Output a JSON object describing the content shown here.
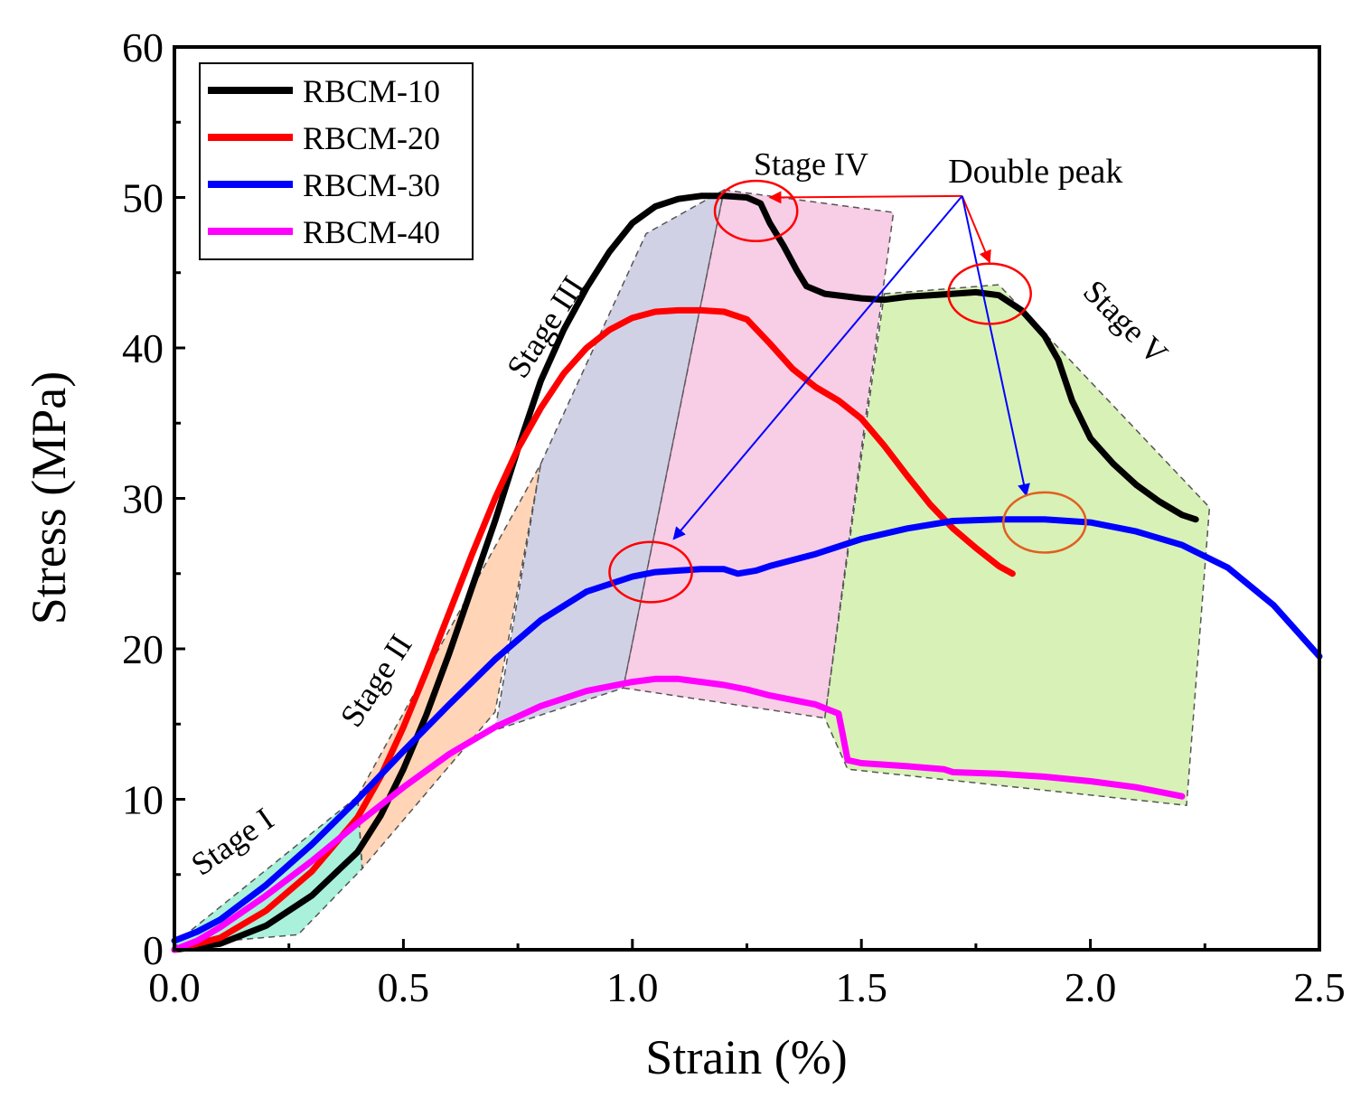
{
  "chart_data": {
    "type": "line",
    "xlabel": "Strain (%)",
    "ylabel": "Stress (MPa)",
    "xlim": [
      0,
      2.5
    ],
    "ylim": [
      0,
      60
    ],
    "x_ticks": [
      "0.0",
      "0.5",
      "1.0",
      "1.5",
      "2.0",
      "2.5"
    ],
    "y_ticks": [
      "0",
      "10",
      "20",
      "30",
      "40",
      "50",
      "60"
    ],
    "legend_position": "top-left",
    "series": [
      {
        "name": "RBCM-10",
        "color": "#000000",
        "points": [
          [
            0,
            0
          ],
          [
            0.1,
            0.4
          ],
          [
            0.2,
            1.6
          ],
          [
            0.3,
            3.6
          ],
          [
            0.4,
            6.5
          ],
          [
            0.45,
            8.9
          ],
          [
            0.5,
            12
          ],
          [
            0.55,
            15.6
          ],
          [
            0.6,
            19.7
          ],
          [
            0.65,
            24.1
          ],
          [
            0.7,
            28.5
          ],
          [
            0.75,
            33.3
          ],
          [
            0.8,
            37.8
          ],
          [
            0.85,
            41.2
          ],
          [
            0.9,
            44.0
          ],
          [
            0.95,
            46.4
          ],
          [
            1.0,
            48.3
          ],
          [
            1.05,
            49.4
          ],
          [
            1.1,
            49.9
          ],
          [
            1.15,
            50.1
          ],
          [
            1.2,
            50.1
          ],
          [
            1.25,
            50.0
          ],
          [
            1.28,
            49.6
          ],
          [
            1.3,
            48.3
          ],
          [
            1.33,
            46.8
          ],
          [
            1.36,
            45.1
          ],
          [
            1.38,
            44.1
          ],
          [
            1.42,
            43.6
          ],
          [
            1.5,
            43.3
          ],
          [
            1.55,
            43.2
          ],
          [
            1.6,
            43.4
          ],
          [
            1.7,
            43.6
          ],
          [
            1.75,
            43.7
          ],
          [
            1.8,
            43.5
          ],
          [
            1.85,
            42.5
          ],
          [
            1.9,
            40.8
          ],
          [
            1.93,
            39.2
          ],
          [
            1.96,
            36.5
          ],
          [
            2.0,
            34.0
          ],
          [
            2.05,
            32.3
          ],
          [
            2.1,
            30.9
          ],
          [
            2.15,
            29.8
          ],
          [
            2.2,
            28.9
          ],
          [
            2.23,
            28.6
          ]
        ]
      },
      {
        "name": "RBCM-20",
        "color": "#ff0000",
        "points": [
          [
            0,
            0
          ],
          [
            0.1,
            0.8
          ],
          [
            0.2,
            2.6
          ],
          [
            0.3,
            5.2
          ],
          [
            0.4,
            8.8
          ],
          [
            0.45,
            11.5
          ],
          [
            0.5,
            14.8
          ],
          [
            0.55,
            18.5
          ],
          [
            0.6,
            22.4
          ],
          [
            0.65,
            26.3
          ],
          [
            0.7,
            30.0
          ],
          [
            0.75,
            33.3
          ],
          [
            0.8,
            36.0
          ],
          [
            0.85,
            38.3
          ],
          [
            0.9,
            40.0
          ],
          [
            0.95,
            41.2
          ],
          [
            1.0,
            42.0
          ],
          [
            1.05,
            42.4
          ],
          [
            1.1,
            42.5
          ],
          [
            1.15,
            42.5
          ],
          [
            1.2,
            42.4
          ],
          [
            1.25,
            41.9
          ],
          [
            1.3,
            40.3
          ],
          [
            1.35,
            38.6
          ],
          [
            1.4,
            37.4
          ],
          [
            1.45,
            36.5
          ],
          [
            1.5,
            35.3
          ],
          [
            1.55,
            33.5
          ],
          [
            1.6,
            31.5
          ],
          [
            1.65,
            29.6
          ],
          [
            1.7,
            28.0
          ],
          [
            1.75,
            26.7
          ],
          [
            1.8,
            25.5
          ],
          [
            1.83,
            25.0
          ]
        ]
      },
      {
        "name": "RBCM-30",
        "color": "#0000ff",
        "points": [
          [
            0,
            0.6
          ],
          [
            0.05,
            1.2
          ],
          [
            0.1,
            2.0
          ],
          [
            0.2,
            4.3
          ],
          [
            0.3,
            7.0
          ],
          [
            0.4,
            10.0
          ],
          [
            0.5,
            13.2
          ],
          [
            0.6,
            16.3
          ],
          [
            0.7,
            19.3
          ],
          [
            0.8,
            21.9
          ],
          [
            0.9,
            23.8
          ],
          [
            1.0,
            24.8
          ],
          [
            1.05,
            25.1
          ],
          [
            1.1,
            25.2
          ],
          [
            1.15,
            25.3
          ],
          [
            1.2,
            25.3
          ],
          [
            1.23,
            25.0
          ],
          [
            1.27,
            25.2
          ],
          [
            1.3,
            25.5
          ],
          [
            1.4,
            26.3
          ],
          [
            1.5,
            27.3
          ],
          [
            1.6,
            28.0
          ],
          [
            1.7,
            28.5
          ],
          [
            1.8,
            28.6
          ],
          [
            1.9,
            28.6
          ],
          [
            2.0,
            28.4
          ],
          [
            2.1,
            27.8
          ],
          [
            2.2,
            26.9
          ],
          [
            2.3,
            25.4
          ],
          [
            2.4,
            22.9
          ],
          [
            2.5,
            19.5
          ]
        ]
      },
      {
        "name": "RBCM-40",
        "color": "#ff00ff",
        "points": [
          [
            0,
            0
          ],
          [
            0.05,
            0.6
          ],
          [
            0.1,
            1.5
          ],
          [
            0.2,
            3.6
          ],
          [
            0.3,
            5.9
          ],
          [
            0.4,
            8.4
          ],
          [
            0.5,
            10.8
          ],
          [
            0.6,
            13.0
          ],
          [
            0.7,
            14.8
          ],
          [
            0.8,
            16.2
          ],
          [
            0.9,
            17.2
          ],
          [
            1.0,
            17.8
          ],
          [
            1.05,
            18.0
          ],
          [
            1.1,
            18.0
          ],
          [
            1.15,
            17.8
          ],
          [
            1.2,
            17.6
          ],
          [
            1.25,
            17.3
          ],
          [
            1.3,
            16.9
          ],
          [
            1.35,
            16.6
          ],
          [
            1.4,
            16.3
          ],
          [
            1.45,
            15.7
          ],
          [
            1.46,
            14.2
          ],
          [
            1.47,
            12.6
          ],
          [
            1.5,
            12.4
          ],
          [
            1.6,
            12.2
          ],
          [
            1.68,
            12.0
          ],
          [
            1.7,
            11.8
          ],
          [
            1.8,
            11.7
          ],
          [
            1.9,
            11.5
          ],
          [
            2.0,
            11.2
          ],
          [
            2.1,
            10.8
          ],
          [
            2.2,
            10.2
          ]
        ]
      }
    ],
    "stage_regions": [
      {
        "label": "Stage I",
        "color": "#40e0b0",
        "label_pos": [
          0.14,
          6.6
        ],
        "label_rotation": -35,
        "polygon": [
          [
            0,
            0.4
          ],
          [
            0.4,
            10.2
          ],
          [
            0.41,
            5.4
          ],
          [
            0.27,
            1.0
          ],
          [
            0,
            0.3
          ]
        ]
      },
      {
        "label": "Stage II",
        "color": "#ffa060",
        "label_pos": [
          0.46,
          17.5
        ],
        "label_rotation": -57,
        "polygon": [
          [
            0.4,
            10.2
          ],
          [
            0.8,
            32.3
          ],
          [
            0.7,
            15.8
          ],
          [
            0.41,
            5.4
          ]
        ]
      },
      {
        "label": "Stage III",
        "color": "#9898c8",
        "label_pos": [
          0.83,
          41.0
        ],
        "label_rotation": -57,
        "polygon": [
          [
            0.8,
            32.3
          ],
          [
            1.03,
            47.6
          ],
          [
            1.2,
            50.5
          ],
          [
            0.98,
            17.4
          ],
          [
            0.7,
            14.6
          ]
        ]
      },
      {
        "label": "Stage IV",
        "color": "#f090c8",
        "label_pos": [
          1.39,
          51.5
        ],
        "label_rotation": 0,
        "polygon": [
          [
            1.2,
            50.5
          ],
          [
            1.57,
            49.0
          ],
          [
            1.42,
            15.4
          ],
          [
            0.98,
            17.4
          ]
        ]
      },
      {
        "label": "Stage V",
        "color": "#a8e060",
        "label_pos": [
          2.06,
          41.2
        ],
        "label_rotation": 45,
        "polygon": [
          [
            1.55,
            43.6
          ],
          [
            1.8,
            44.2
          ],
          [
            2.26,
            29.4
          ],
          [
            2.21,
            9.6
          ],
          [
            1.47,
            12.0
          ],
          [
            1.42,
            15.4
          ]
        ]
      }
    ],
    "annotation": {
      "text": "Double peak",
      "text_pos": [
        1.88,
        51.0
      ],
      "origin": [
        1.72,
        50.1
      ],
      "arrows": [
        {
          "color": "#ff0000",
          "to": [
            1.3,
            50.0
          ]
        },
        {
          "color": "#ff0000",
          "to": [
            1.78,
            45.7
          ]
        },
        {
          "color": "#0000ff",
          "to": [
            1.09,
            27.3
          ]
        },
        {
          "color": "#0000ff",
          "to": [
            1.86,
            30.2
          ]
        }
      ],
      "circles": [
        {
          "color": "#ff0000",
          "center": [
            1.27,
            49.1
          ],
          "rx": 0.09,
          "ry": 2.0
        },
        {
          "color": "#ff0000",
          "center": [
            1.78,
            43.6
          ],
          "rx": 0.09,
          "ry": 2.0
        },
        {
          "color": "#ff0000",
          "center": [
            1.04,
            25.1
          ],
          "rx": 0.09,
          "ry": 2.0
        },
        {
          "color": "#e06020",
          "center": [
            1.9,
            28.4
          ],
          "rx": 0.09,
          "ry": 2.0
        }
      ]
    }
  }
}
